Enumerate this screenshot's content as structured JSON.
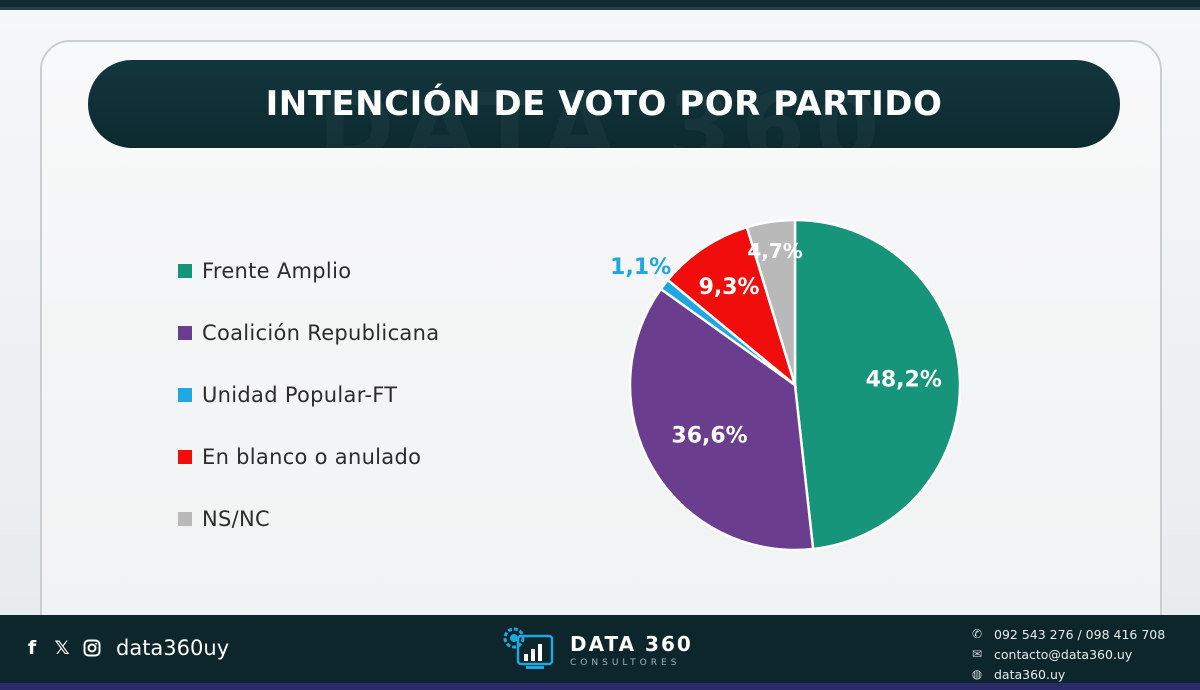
{
  "title": "INTENCIÓN DE VOTO POR PARTIDO",
  "watermark": "DATA 360",
  "chart_data": {
    "type": "pie",
    "title": "INTENCIÓN DE VOTO POR PARTIDO",
    "legend_position": "left",
    "slices": [
      {
        "name": "Frente Amplio",
        "value": 48.2,
        "label": "48,2%",
        "color": "#16957a"
      },
      {
        "name": "Coalición Republicana",
        "value": 36.6,
        "label": "36,6%",
        "color": "#6a3d8f"
      },
      {
        "name": "Unidad Popular-FT",
        "value": 1.1,
        "label": "1,1%",
        "color": "#1ea7e1"
      },
      {
        "name": "En blanco o anulado",
        "value": 9.3,
        "label": "9,3%",
        "color": "#f20d0d"
      },
      {
        "name": "NS/NC",
        "value": 4.7,
        "label": "4,7%",
        "color": "#b9b9b9"
      }
    ]
  },
  "footer": {
    "social_icons": [
      "facebook-icon",
      "x-icon",
      "instagram-icon"
    ],
    "social_f": "f",
    "social_x": "𝕏",
    "handle": "data360uy",
    "brand_name": "DATA 360",
    "brand_sub": "CONSULTORES",
    "phone": "092 543 276 / 098 416 708",
    "email": "contacto@data360.uy",
    "website": "data360.uy"
  }
}
